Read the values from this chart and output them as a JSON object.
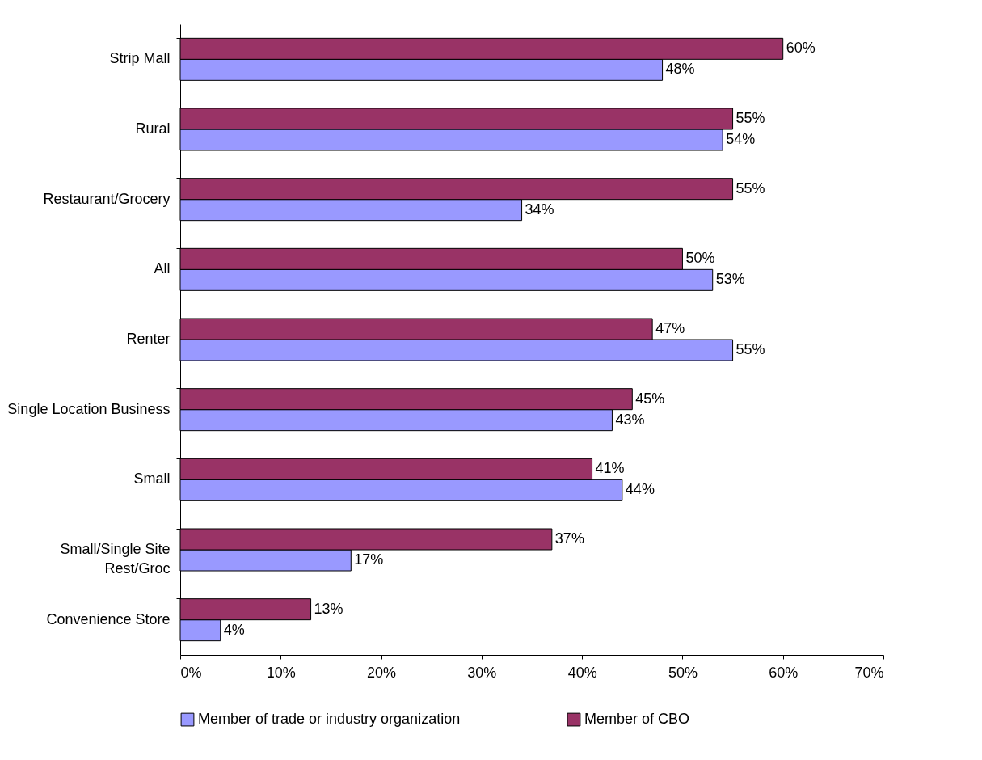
{
  "chart_data": {
    "type": "bar",
    "orientation": "horizontal",
    "categories": [
      "Strip Mall",
      "Rural",
      "Restaurant/Grocery",
      "All",
      "Renter",
      "Single Location Business",
      "Small",
      "Small/Single Site\nRest/Groc",
      "Convenience Store"
    ],
    "series": [
      {
        "name": "Member of trade or industry organization",
        "color": "#9999ff",
        "values": [
          48,
          54,
          34,
          53,
          55,
          43,
          44,
          17,
          4
        ],
        "value_labels": [
          "48%",
          "54%",
          "34%",
          "53%",
          "55%",
          "43%",
          "44%",
          "17%",
          "4%"
        ]
      },
      {
        "name": "Member of CBO",
        "color": "#993366",
        "values": [
          60,
          55,
          55,
          50,
          47,
          45,
          41,
          37,
          13
        ],
        "value_labels": [
          "60%",
          "55%",
          "55%",
          "50%",
          "47%",
          "45%",
          "41%",
          "37%",
          "13%"
        ]
      }
    ],
    "xlim": [
      0,
      70
    ],
    "xticks": [
      {
        "value": 0,
        "label": "0%"
      },
      {
        "value": 10,
        "label": "10%"
      },
      {
        "value": 20,
        "label": "20%"
      },
      {
        "value": 30,
        "label": "30%"
      },
      {
        "value": 40,
        "label": "40%"
      },
      {
        "value": 50,
        "label": "50%"
      },
      {
        "value": 60,
        "label": "60%"
      },
      {
        "value": 70,
        "label": "70%"
      }
    ],
    "grid": false,
    "legend": "bottom"
  }
}
